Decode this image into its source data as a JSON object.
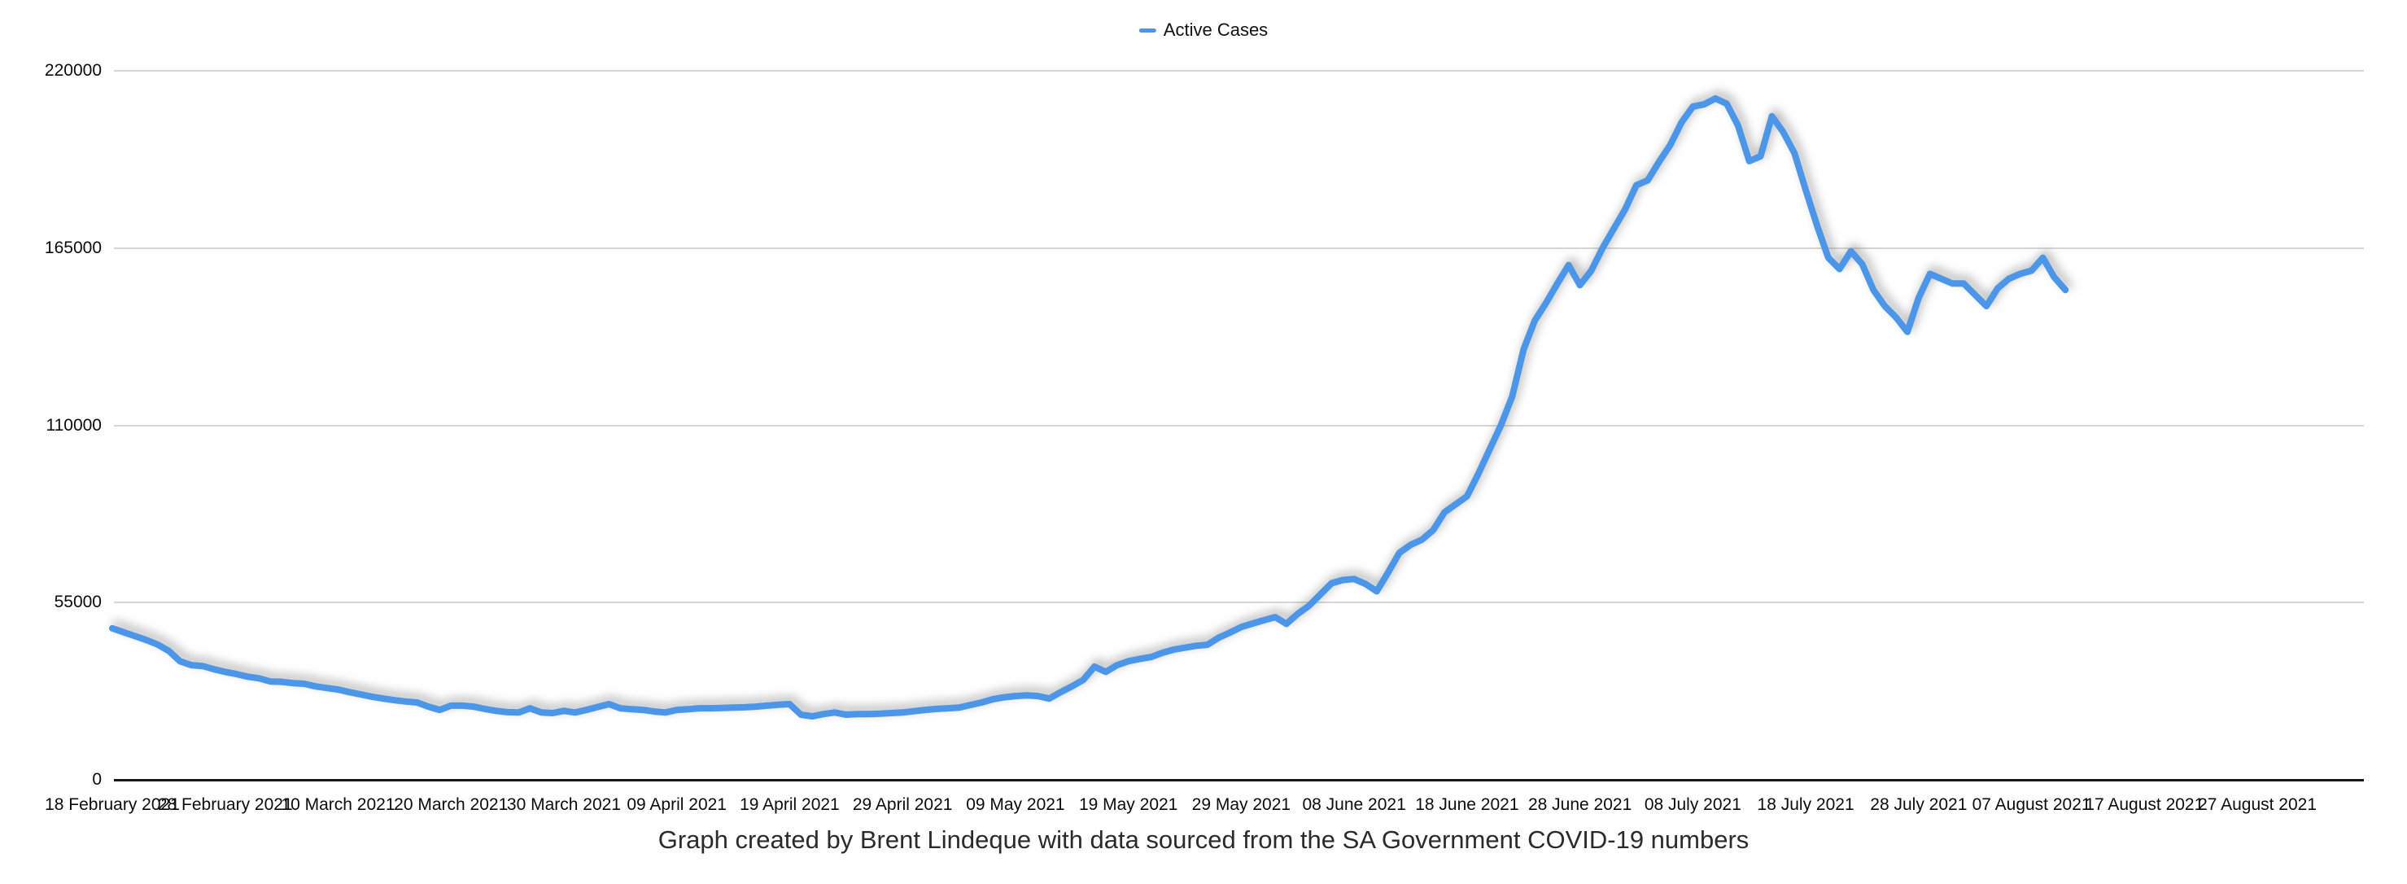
{
  "legend": {
    "label": "Active Cases",
    "swatch_color": "#4b96e8"
  },
  "caption": "Graph created by Brent Lindeque with data sourced from the SA Government COVID-19 numbers",
  "y_axis": {
    "tick_labels": [
      "220000",
      "165000",
      "110000",
      "55000",
      "0"
    ],
    "tick_values": [
      220000,
      165000,
      110000,
      55000,
      0
    ]
  },
  "x_axis": {
    "tick_labels": [
      "18 February 2021",
      "28 February 2021",
      "10 March 2021",
      "20 March 2021",
      "30 March 2021",
      "09 April 2021",
      "19 April 2021",
      "29 April 2021",
      "09 May 2021",
      "19 May 2021",
      "29 May 2021",
      "08 June 2021",
      "18 June 2021",
      "28 June 2021",
      "08 July 2021",
      "18 July 2021",
      "28 July 2021",
      "07 August 2021",
      "17 August 2021",
      "27 August 2021"
    ]
  },
  "chart_data": {
    "type": "line",
    "title": "",
    "series_name": "Active Cases",
    "line_color": "#4b96e8",
    "grid": "horizontal",
    "legend_position": "top-center",
    "ylim": [
      0,
      220000
    ],
    "y_tick_values": [
      0,
      55000,
      110000,
      165000,
      220000
    ],
    "x_start_date": "18 February 2021",
    "x_end_date": "10 August 2021",
    "frequency": "daily",
    "x_tick_interval_days": 10,
    "values": [
      47000,
      45800,
      44600,
      43400,
      42000,
      40000,
      36800,
      35600,
      35300,
      34300,
      33500,
      32800,
      32000,
      31500,
      30500,
      30400,
      30000,
      29800,
      29000,
      28500,
      28000,
      27200,
      26500,
      25800,
      25200,
      24700,
      24300,
      24000,
      22700,
      21700,
      23000,
      23000,
      22700,
      22000,
      21400,
      21000,
      20900,
      22200,
      20900,
      20700,
      21400,
      20900,
      21700,
      22600,
      23500,
      22200,
      21900,
      21700,
      21200,
      20900,
      21700,
      21900,
      22200,
      22200,
      22300,
      22400,
      22500,
      22700,
      23000,
      23300,
      23500,
      20200,
      19700,
      20400,
      20900,
      20200,
      20400,
      20400,
      20500,
      20700,
      20900,
      21300,
      21700,
      22000,
      22200,
      22400,
      23200,
      24000,
      25000,
      25600,
      26000,
      26200,
      26000,
      25200,
      27200,
      29000,
      31000,
      35100,
      33500,
      35600,
      36800,
      37500,
      38100,
      39400,
      40400,
      41000,
      41600,
      41900,
      44100,
      45700,
      47400,
      48500,
      49500,
      50500,
      48400,
      51500,
      54000,
      57500,
      61000,
      62000,
      62300,
      60800,
      58500,
      64300,
      70400,
      72900,
      74500,
      77500,
      83000,
      85500,
      88000,
      95000,
      102500,
      110000,
      119000,
      133500,
      142500,
      148000,
      154000,
      159700,
      153500,
      158000,
      165000,
      171000,
      177000,
      184500,
      186000,
      191700,
      197000,
      204000,
      208900,
      209600,
      211400,
      209800,
      203000,
      192000,
      193500,
      205900,
      201000,
      194500,
      183000,
      172000,
      162000,
      158500,
      164000,
      160000,
      152000,
      147000,
      143500,
      139000,
      149500,
      157000,
      155500,
      154000,
      154000,
      150500,
      147000,
      152500,
      155500,
      157000,
      158000,
      162000,
      156000,
      152000
    ]
  }
}
